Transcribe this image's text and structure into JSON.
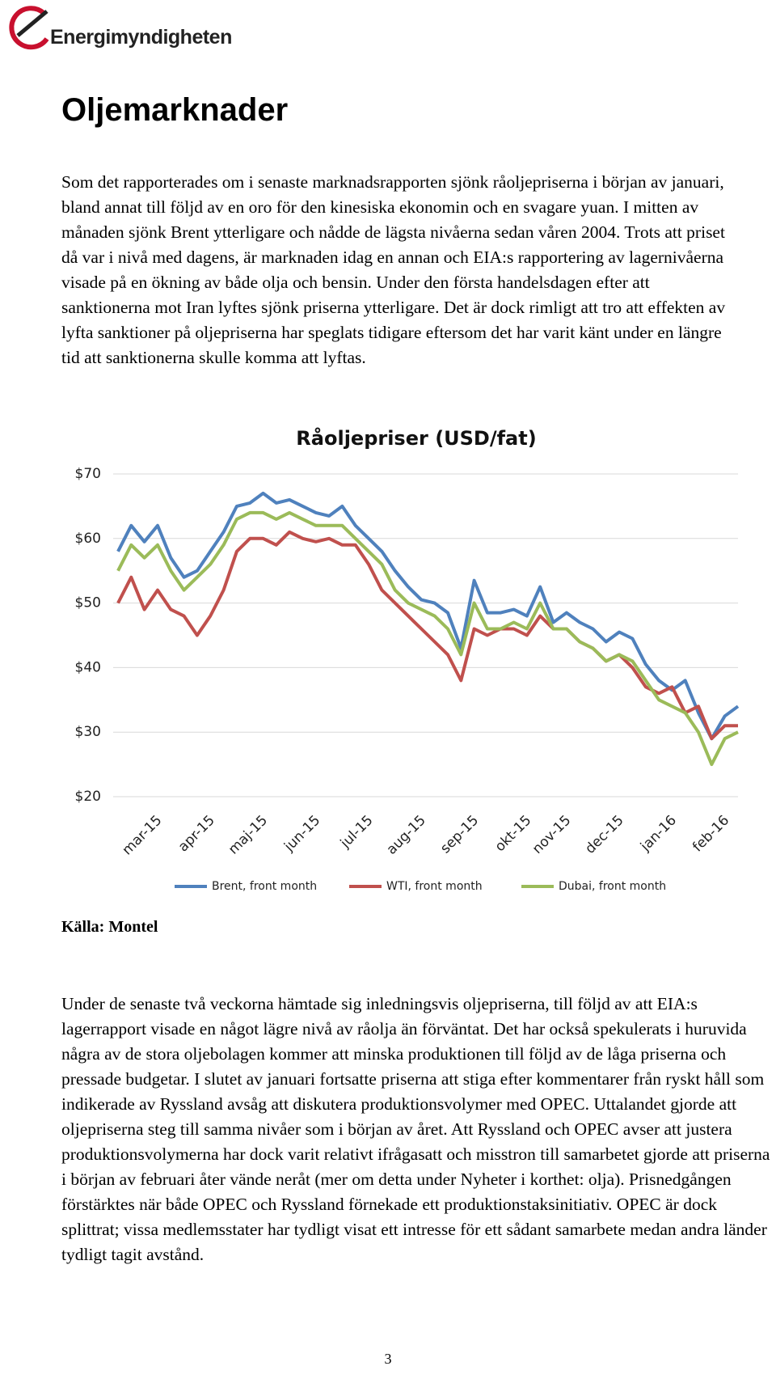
{
  "header": {
    "logo": "Energimyndigheten"
  },
  "title": "Oljemarknader",
  "paragraphs": [
    "Som det rapporterades om i senaste marknadsrapporten sjönk råoljepriserna i början av januari, bland annat till följd av en oro för den kinesiska ekonomin och en svagare yuan. I mitten av månaden sjönk Brent ytterligare och nådde de lägsta nivåerna sedan våren 2004. Trots att priset då var i nivå med dagens, är marknaden idag en annan och EIA:s rapportering av lagernivåerna visade på en ökning av både olja och bensin. Under den första handelsdagen efter att sanktionerna mot Iran lyftes sjönk priserna ytterligare. Det är dock rimligt att tro att effekten av lyfta sanktioner på oljepriserna har speglats tidigare eftersom det har varit känt under en längre tid att sanktionerna skulle komma att lyftas.",
    "Under de senaste två veckorna hämtade sig inledningsvis oljepriserna, till följd av att EIA:s lagerrapport visade en något lägre nivå av råolja än förväntat. Det har också spekulerats i huruvida några av de stora oljebolagen kommer att minska produktionen till följd av de låga priserna och pressade budgetar. I slutet av januari fortsatte priserna att stiga efter kommentarer från ryskt håll som indikerade av Ryssland avsåg att diskutera produktionsvolymer med OPEC. Uttalandet gjorde att oljepriserna steg till samma nivåer som i början av året. Att Ryssland och OPEC avser att justera produktionsvolymerna har dock varit relativt ifrågasatt och misstron till samarbetet gjorde att priserna i början av februari åter vände neråt (mer om detta under Nyheter i korthet: olja). Prisnedgången förstärktes när både OPEC och Ryssland förnekade ett produktionstaksinitiativ. OPEC är dock splittrat; vissa medlemsstater har tydligt visat ett intresse för ett sådant samarbete medan andra länder tydligt tagit avstånd."
  ],
  "source": "Källa: Montel",
  "page_number": "3",
  "chart_data": {
    "type": "line",
    "title": "Råoljepriser (USD/fat)",
    "categories": [
      null,
      null,
      null,
      "mar-15",
      null,
      null,
      null,
      "apr-15",
      null,
      null,
      null,
      "maj-15",
      null,
      null,
      null,
      "jun-15",
      null,
      null,
      null,
      "jul-15",
      null,
      null,
      null,
      "aug-15",
      null,
      null,
      null,
      "sep-15",
      null,
      null,
      null,
      "okt-15",
      null,
      null,
      "nov-15",
      null,
      null,
      null,
      "dec-15",
      null,
      null,
      null,
      "jan-16",
      null,
      null,
      null,
      "feb-16",
      null
    ],
    "series": [
      {
        "name": "Brent, front month",
        "color": "#4f81bd",
        "values": [
          58,
          62,
          59.5,
          62,
          57,
          54,
          55,
          58,
          61,
          65,
          65.5,
          67,
          65.5,
          66,
          65,
          64,
          63.5,
          65,
          62,
          60,
          58,
          55,
          52.5,
          50.5,
          50,
          48.5,
          43,
          53.5,
          48.5,
          48.5,
          49,
          48,
          52.5,
          47,
          48.5,
          47,
          46,
          44,
          45.5,
          44.5,
          40.5,
          38,
          36.5,
          38,
          33,
          29,
          32.5,
          34
        ]
      },
      {
        "name": "WTI, front month",
        "color": "#c0504d",
        "values": [
          50,
          54,
          49,
          52,
          49,
          48,
          45,
          48,
          52,
          58,
          60,
          60,
          59,
          61,
          60,
          59.5,
          60,
          59,
          59,
          56,
          52,
          50,
          48,
          46,
          44,
          42,
          38,
          46,
          45,
          46,
          46,
          45,
          48,
          46,
          46,
          44,
          43,
          41,
          42,
          40,
          37,
          36,
          37,
          33,
          34,
          29,
          31,
          31
        ]
      },
      {
        "name": "Dubai, front month",
        "color": "#9bbb59",
        "values": [
          55,
          59,
          57,
          59,
          55,
          52,
          54,
          56,
          59,
          63,
          64,
          64,
          63,
          64,
          63,
          62,
          62,
          62,
          60,
          58,
          56,
          52,
          50,
          49,
          48,
          46,
          42,
          50,
          46,
          46,
          47,
          46,
          50,
          46,
          46,
          44,
          43,
          41,
          42,
          41,
          38,
          35,
          34,
          33,
          30,
          25,
          29,
          30
        ]
      }
    ],
    "ylim": [
      20,
      70
    ],
    "yticks": [
      {
        "value": 20,
        "label": "$20"
      },
      {
        "value": 30,
        "label": "$30"
      },
      {
        "value": 40,
        "label": "$40"
      },
      {
        "value": 50,
        "label": "$50"
      },
      {
        "value": 60,
        "label": "$60"
      },
      {
        "value": 70,
        "label": "$70"
      }
    ],
    "grid": true,
    "legend": "bottom"
  }
}
